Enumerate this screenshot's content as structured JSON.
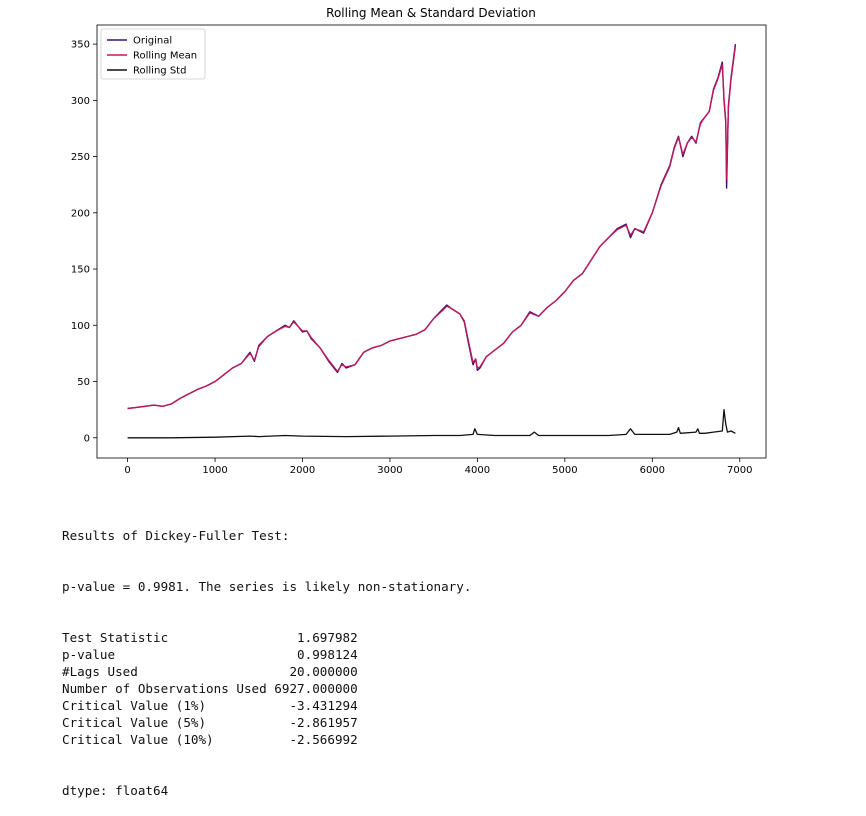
{
  "chart_data": {
    "type": "line",
    "title": "Rolling Mean & Standard Deviation",
    "xlabel": "",
    "ylabel": "",
    "xlim": [
      -350,
      7300
    ],
    "ylim": [
      -18,
      367
    ],
    "xticks": [
      0,
      1000,
      2000,
      3000,
      4000,
      5000,
      6000,
      7000
    ],
    "yticks": [
      0,
      50,
      100,
      150,
      200,
      250,
      300,
      350
    ],
    "grid": false,
    "legend_position": "top-left",
    "series": [
      {
        "name": "Original",
        "color": "#3b0f70",
        "x": [
          0,
          100,
          200,
          300,
          400,
          500,
          600,
          700,
          800,
          900,
          1000,
          1100,
          1200,
          1300,
          1400,
          1450,
          1500,
          1600,
          1700,
          1800,
          1850,
          1900,
          2000,
          2050,
          2100,
          2200,
          2300,
          2350,
          2400,
          2450,
          2500,
          2600,
          2700,
          2800,
          2900,
          3000,
          3100,
          3200,
          3300,
          3400,
          3500,
          3600,
          3650,
          3700,
          3800,
          3850,
          3900,
          3950,
          3980,
          4000,
          4030,
          4100,
          4200,
          4300,
          4400,
          4500,
          4600,
          4700,
          4800,
          4900,
          5000,
          5100,
          5200,
          5300,
          5400,
          5500,
          5600,
          5700,
          5750,
          5800,
          5900,
          6000,
          6100,
          6200,
          6250,
          6300,
          6350,
          6400,
          6450,
          6500,
          6550,
          6600,
          6650,
          6700,
          6750,
          6800,
          6820,
          6840,
          6850,
          6870,
          6900,
          6950
        ],
        "y": [
          26,
          27,
          28,
          29,
          28,
          30,
          35,
          39,
          43,
          46,
          50,
          56,
          62,
          66,
          76,
          68,
          82,
          90,
          95,
          100,
          98,
          104,
          94,
          95,
          88,
          80,
          68,
          63,
          58,
          66,
          62,
          65,
          76,
          80,
          82,
          86,
          88,
          90,
          92,
          96,
          106,
          114,
          118,
          115,
          110,
          103,
          83,
          65,
          70,
          60,
          62,
          72,
          78,
          84,
          94,
          100,
          112,
          108,
          116,
          122,
          130,
          140,
          146,
          158,
          170,
          178,
          186,
          190,
          178,
          186,
          182,
          200,
          225,
          242,
          258,
          268,
          250,
          262,
          268,
          262,
          280,
          285,
          290,
          310,
          320,
          334,
          300,
          280,
          222,
          295,
          320,
          350
        ]
      },
      {
        "name": "Rolling Mean",
        "color": "#c2185b",
        "x": [
          0,
          100,
          200,
          300,
          400,
          500,
          600,
          700,
          800,
          900,
          1000,
          1100,
          1200,
          1300,
          1400,
          1450,
          1500,
          1600,
          1700,
          1800,
          1850,
          1900,
          2000,
          2050,
          2100,
          2200,
          2300,
          2350,
          2400,
          2450,
          2500,
          2600,
          2700,
          2800,
          2900,
          3000,
          3100,
          3200,
          3300,
          3400,
          3500,
          3600,
          3650,
          3700,
          3800,
          3850,
          3900,
          3950,
          3980,
          4000,
          4030,
          4100,
          4200,
          4300,
          4400,
          4500,
          4600,
          4700,
          4800,
          4900,
          5000,
          5100,
          5200,
          5300,
          5400,
          5500,
          5600,
          5700,
          5750,
          5800,
          5900,
          6000,
          6100,
          6200,
          6250,
          6300,
          6350,
          6400,
          6450,
          6500,
          6550,
          6600,
          6650,
          6700,
          6750,
          6800,
          6820,
          6840,
          6850,
          6870,
          6900,
          6950
        ],
        "y": [
          26,
          27,
          28,
          29,
          28,
          30,
          35,
          39,
          43,
          46,
          50,
          56,
          62,
          66,
          75,
          69,
          81,
          90,
          95,
          99,
          98,
          103,
          95,
          95,
          89,
          80,
          69,
          64,
          59,
          65,
          63,
          65,
          76,
          80,
          82,
          86,
          88,
          90,
          92,
          96,
          106,
          113,
          117,
          115,
          110,
          104,
          85,
          67,
          70,
          62,
          63,
          72,
          78,
          84,
          94,
          100,
          111,
          108,
          116,
          122,
          130,
          140,
          146,
          158,
          170,
          178,
          185,
          189,
          180,
          186,
          183,
          200,
          224,
          241,
          257,
          267,
          252,
          262,
          267,
          263,
          279,
          285,
          290,
          309,
          319,
          332,
          302,
          282,
          230,
          293,
          318,
          348
        ]
      },
      {
        "name": "Rolling Std",
        "color": "#111111",
        "x": [
          0,
          500,
          1000,
          1400,
          1500,
          1800,
          2000,
          2500,
          3000,
          3500,
          3800,
          3950,
          3970,
          4000,
          4200,
          4600,
          4650,
          4700,
          5000,
          5500,
          5700,
          5750,
          5800,
          6000,
          6200,
          6280,
          6300,
          6320,
          6500,
          6520,
          6540,
          6600,
          6700,
          6800,
          6820,
          6840,
          6860,
          6900,
          6950
        ],
        "y": [
          0,
          0,
          0.5,
          1.5,
          1,
          2,
          1.5,
          1,
          1.5,
          2,
          2,
          3,
          8,
          3,
          2,
          2,
          5,
          2,
          2,
          2,
          3,
          8,
          3,
          3,
          3,
          5,
          9,
          4,
          5,
          8,
          4,
          4,
          5,
          6,
          25,
          12,
          5,
          6,
          4
        ]
      }
    ]
  },
  "output": {
    "heading": "Results of Dickey-Fuller Test:",
    "summary": "p-value = 0.9981. The series is likely non-stationary.",
    "rows": [
      {
        "label": "Test Statistic",
        "value": "1.697982"
      },
      {
        "label": "p-value",
        "value": "0.998124"
      },
      {
        "label": "#Lags Used",
        "value": "20.000000"
      },
      {
        "label": "Number of Observations Used",
        "value": "6927.000000"
      },
      {
        "label": "Critical Value (1%)",
        "value": "-3.431294"
      },
      {
        "label": "Critical Value (5%)",
        "value": "-2.861957"
      },
      {
        "label": "Critical Value (10%)",
        "value": "-2.566992"
      }
    ],
    "dtype": "dtype: float64"
  }
}
